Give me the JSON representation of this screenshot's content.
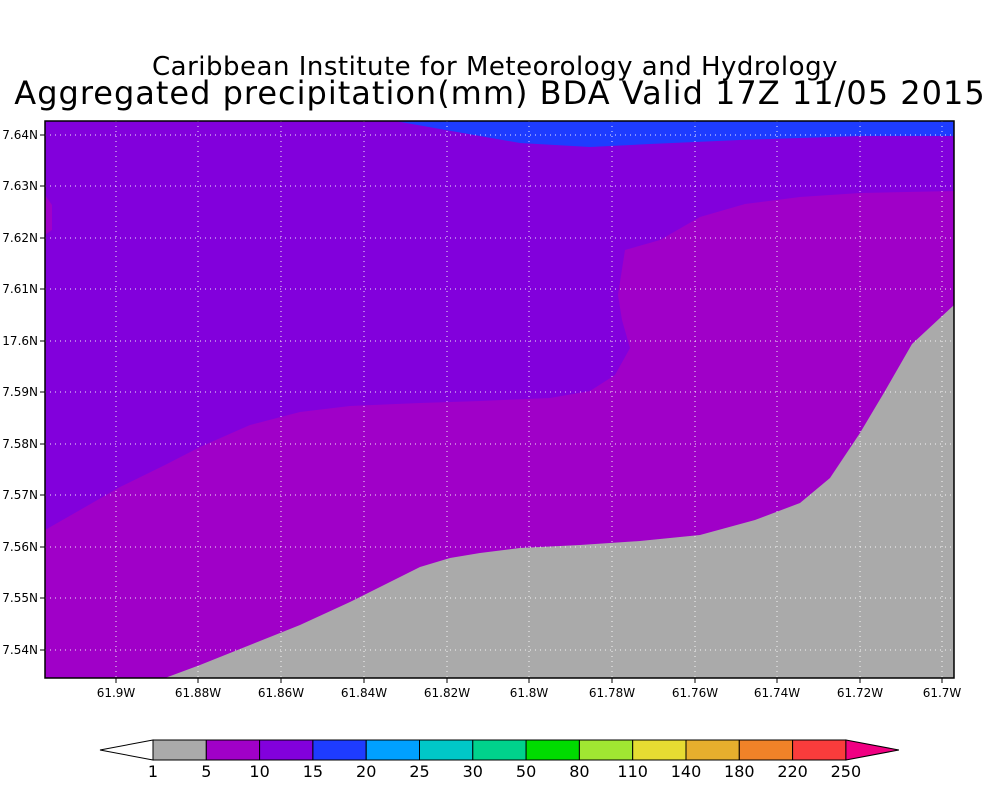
{
  "header": {
    "institution": "Caribbean Institute for Meteorology and Hydrology",
    "product_title": "Aggregated precipitation(mm) BDA Valid 17Z 11/05 2015"
  },
  "map": {
    "grid": "dotted",
    "lat_labels": [
      "7.64N",
      "7.63N",
      "7.62N",
      "7.61N",
      "17.6N",
      "7.59N",
      "7.58N",
      "7.57N",
      "7.56N",
      "7.55N",
      "7.54N"
    ],
    "lon_labels": [
      "61.9W",
      "61.88W",
      "61.86W",
      "61.84W",
      "61.82W",
      "61.8W",
      "61.78W",
      "61.76W",
      "61.74W",
      "61.72W",
      "61.7W"
    ],
    "regions": [
      {
        "name": "1-5 mm (gray)",
        "color": "#aaaaaa"
      },
      {
        "name": "5-10 mm",
        "color": "#a000c8"
      },
      {
        "name": "10-15 mm",
        "color": "#8200dc"
      },
      {
        "name": "15-20 mm",
        "color": "#1e3cff"
      }
    ]
  },
  "colorbar": {
    "labels": [
      "1",
      "5",
      "10",
      "15",
      "20",
      "25",
      "30",
      "50",
      "80",
      "110",
      "140",
      "180",
      "220",
      "250"
    ],
    "colors": [
      "#aaaaaa",
      "#a000c8",
      "#8200dc",
      "#1e3cff",
      "#00a0ff",
      "#00c8c8",
      "#00d28c",
      "#00dc00",
      "#a0e632",
      "#e6dc32",
      "#e6af2d",
      "#f08228",
      "#fa3c3c",
      "#f00082"
    ],
    "under_color": "#ffffff",
    "over_color": "#f00082"
  }
}
